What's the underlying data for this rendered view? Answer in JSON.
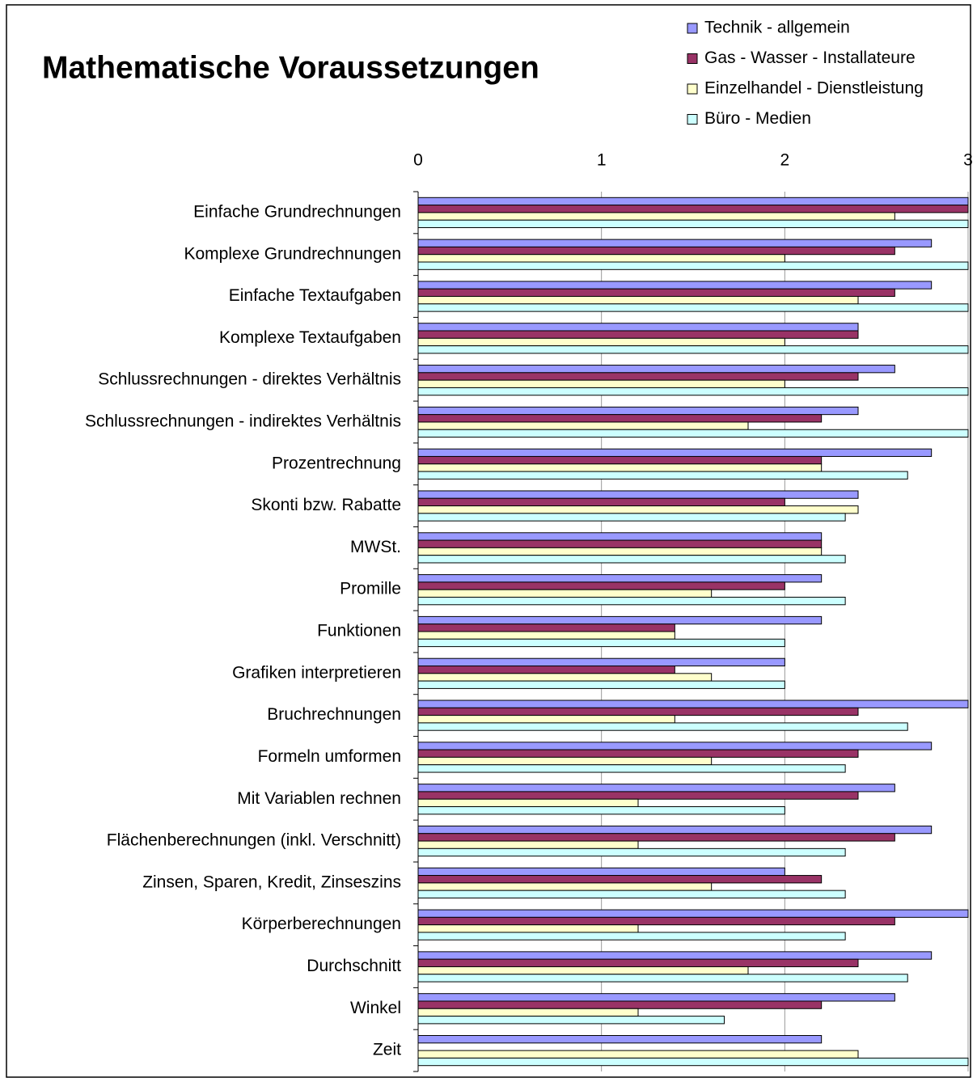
{
  "chart_data": {
    "type": "bar",
    "orientation": "horizontal",
    "title": "Mathematische Voraussetzungen",
    "categories": [
      "Einfache Grundrechnungen",
      "Komplexe Grundrechnungen",
      "Einfache Textaufgaben",
      "Komplexe Textaufgaben",
      "Schlussrechnungen - direktes Verhältnis",
      "Schlussrechnungen - indirektes Verhältnis",
      "Prozentrechnung",
      "Skonti bzw. Rabatte",
      "MWSt.",
      "Promille",
      "Funktionen",
      "Grafiken interpretieren",
      "Bruchrechnungen",
      "Formeln umformen",
      "Mit Variablen rechnen",
      "Flächenberechnungen (inkl. Verschnitt)",
      "Zinsen, Sparen, Kredit, Zinseszins",
      "Körperberechnungen",
      "Durchschnitt",
      "Winkel",
      "Zeit"
    ],
    "series": [
      {
        "name": "Technik - allgemein",
        "color": "#9999ff",
        "values": [
          3,
          2.8,
          2.8,
          2.4,
          2.6,
          2.4,
          2.8,
          2.4,
          2.2,
          2.2,
          2.2,
          2.0,
          3,
          2.8,
          2.6,
          2.8,
          2.0,
          3,
          2.8,
          2.6,
          2.2
        ]
      },
      {
        "name": "Gas - Wasser - Installateure",
        "color": "#993366",
        "values": [
          3,
          2.6,
          2.6,
          2.4,
          2.4,
          2.2,
          2.2,
          2.0,
          2.2,
          2.0,
          1.4,
          1.4,
          2.4,
          2.4,
          2.4,
          2.6,
          2.2,
          2.6,
          2.4,
          2.2,
          null
        ]
      },
      {
        "name": "Einzelhandel - Dienstleistung",
        "color": "#ffffcc",
        "values": [
          2.6,
          2.0,
          2.4,
          2.0,
          2.0,
          1.8,
          2.2,
          2.4,
          2.2,
          1.6,
          1.4,
          1.6,
          1.4,
          1.6,
          1.2,
          1.2,
          1.6,
          1.2,
          1.8,
          1.2,
          2.4
        ]
      },
      {
        "name": "Büro - Medien",
        "color": "#ccffff",
        "values": [
          3,
          3,
          3,
          3,
          3,
          3,
          2.67,
          2.33,
          2.33,
          2.33,
          2.0,
          2.0,
          2.67,
          2.33,
          2.0,
          2.33,
          2.33,
          2.33,
          2.67,
          1.67,
          3
        ]
      }
    ],
    "xlim": [
      0,
      3
    ],
    "xticks": [
      0,
      1,
      2,
      3
    ],
    "grid": true,
    "legend": "top-right"
  }
}
